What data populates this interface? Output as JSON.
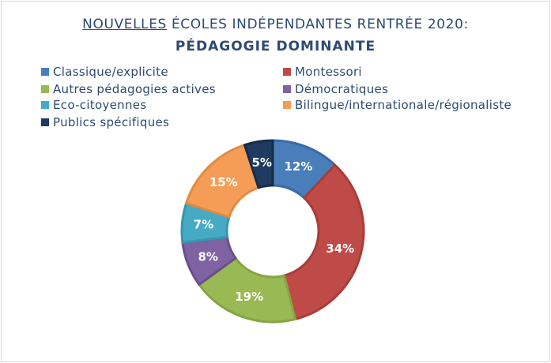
{
  "title": {
    "underlined": "NOUVELLES",
    "rest": " ÉCOLES INDÉPENDANTES RENTRÉE 2020:",
    "subtitle": "PÉDAGOGIE DOMINANTE"
  },
  "chart_data": {
    "type": "pie",
    "variant": "donut",
    "title": "NOUVELLES ÉCOLES INDÉPENDANTES RENTRÉE 2020: PÉDAGOGIE DOMINANTE",
    "legend_position": "top",
    "categories": [
      "Classique/explicite",
      "Montessori",
      "Autres pédagogies actives",
      "Démocratiques",
      "Eco-citoyennes",
      "Bilingue/internationale/régionaliste",
      "Publics spécifiques"
    ],
    "values": [
      12,
      34,
      19,
      8,
      7,
      15,
      5
    ],
    "labels": [
      "12%",
      "34%",
      "19%",
      "8%",
      "7%",
      "15%",
      "5%"
    ],
    "colors": [
      "#4a7ebb",
      "#be4b48",
      "#98b954",
      "#7e62a1",
      "#46aac5",
      "#f59d56",
      "#1f3b60"
    ],
    "stroke_colors": [
      "#3a6aa6",
      "#a83c39",
      "#86a544",
      "#6a508b",
      "#3597b2",
      "#e38a42",
      "#162c4a"
    ]
  }
}
